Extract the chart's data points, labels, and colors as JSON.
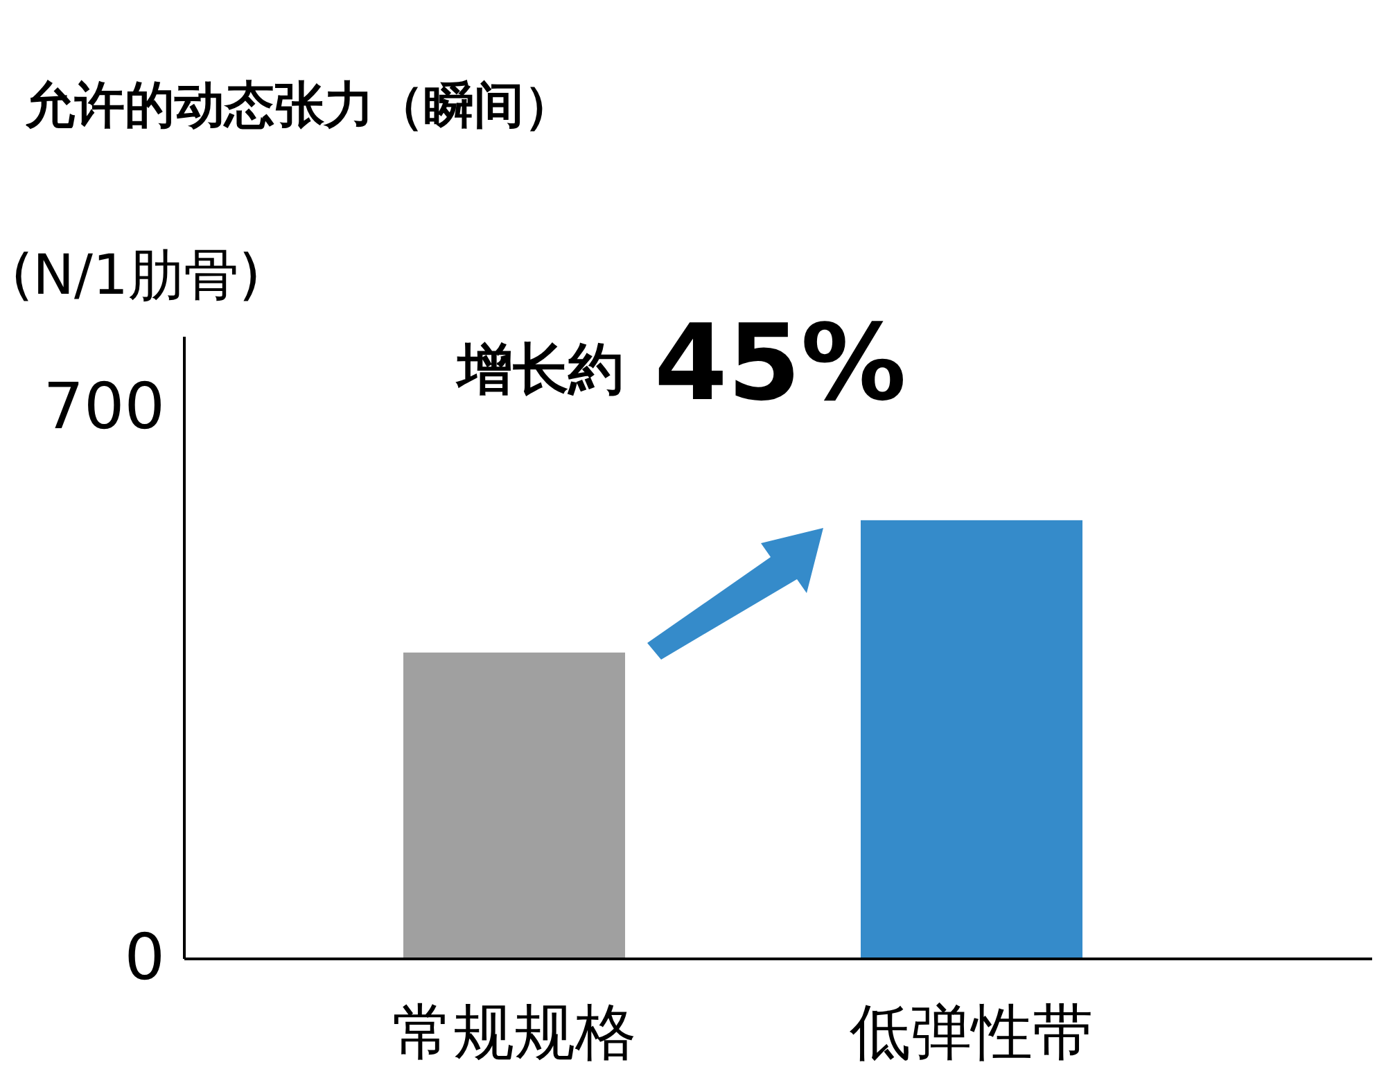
{
  "chart_data": {
    "type": "bar",
    "title": "允许的动态张力（瞬间）",
    "ylabel": "(N/1肋骨)",
    "categories": [
      "常规规格",
      "低弹性带"
    ],
    "values": [
      389,
      557
    ],
    "colors": [
      "#a0a0a0",
      "#358bca"
    ],
    "ylim": [
      0,
      790
    ],
    "yticks": [
      0,
      700
    ],
    "grid": false,
    "annotations": [
      "增长約",
      "45%"
    ]
  }
}
